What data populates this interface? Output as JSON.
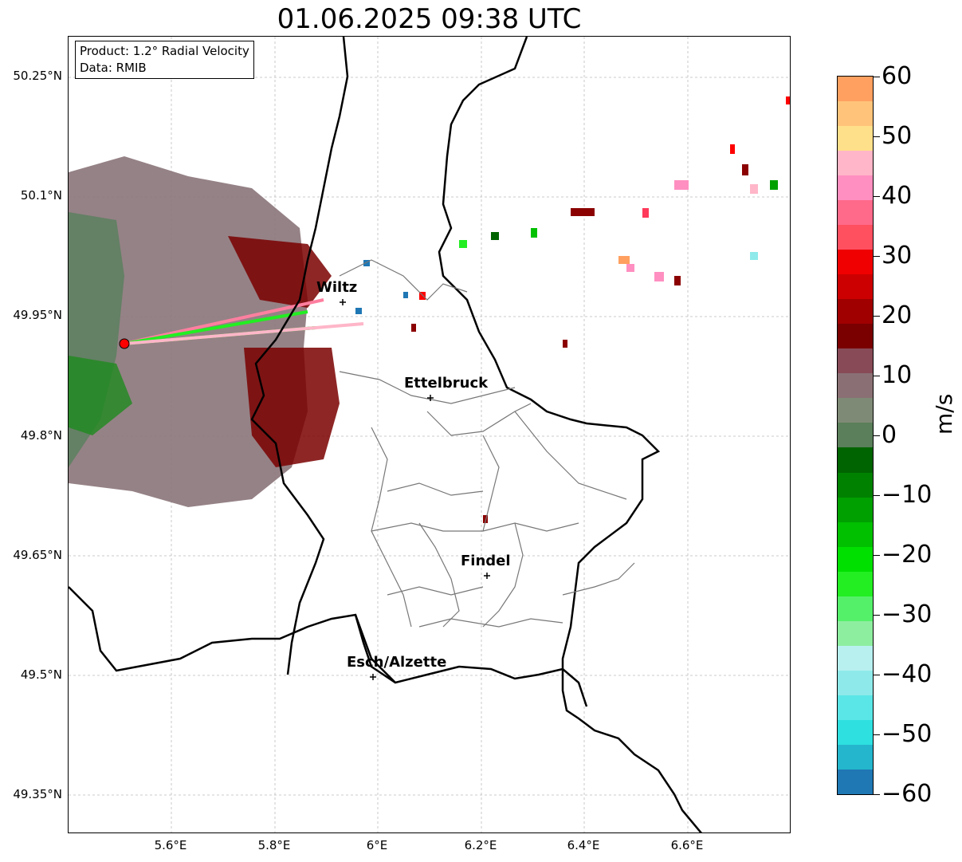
{
  "title": "01.06.2025 09:38 UTC",
  "info": {
    "product": "Product: 1.2° Radial Velocity",
    "data": "Data: RMIB"
  },
  "lat_labels": [
    "50.25°N",
    "50.1°N",
    "49.95°N",
    "49.8°N",
    "49.65°N",
    "49.5°N",
    "49.35°N"
  ],
  "lon_labels": [
    "5.6°E",
    "5.8°E",
    "6°E",
    "6.2°E",
    "6.4°E",
    "6.6°E"
  ],
  "cities": [
    {
      "name": "Wiltz"
    },
    {
      "name": "Ettelbruck"
    },
    {
      "name": "Findel"
    },
    {
      "name": "Esch/Alzette"
    }
  ],
  "colorbar": {
    "unit": "m/s",
    "ticks": [
      "60",
      "50",
      "40",
      "30",
      "20",
      "10",
      "0",
      "−10",
      "−20",
      "−30",
      "−40",
      "−50",
      "−60"
    ],
    "range": [
      -60,
      60
    ],
    "colors": [
      "#1f77b4",
      "#24b6cc",
      "#2ee0e0",
      "#5ae6e6",
      "#8eeaea",
      "#b8f0f0",
      "#8eeea0",
      "#55f06a",
      "#22ee22",
      "#00e000",
      "#00c000",
      "#00a000",
      "#008200",
      "#006400",
      "#5a7f5a",
      "#7f8a76",
      "#8a7074",
      "#874a56",
      "#7a0000",
      "#a00000",
      "#cc0000",
      "#f00000",
      "#ff5060",
      "#ff6a8a",
      "#ff8fc0",
      "#ffb6c8",
      "#ffe08a",
      "#ffc47a",
      "#ffa060"
    ]
  },
  "radar_site": {
    "color": "#ff0000"
  }
}
